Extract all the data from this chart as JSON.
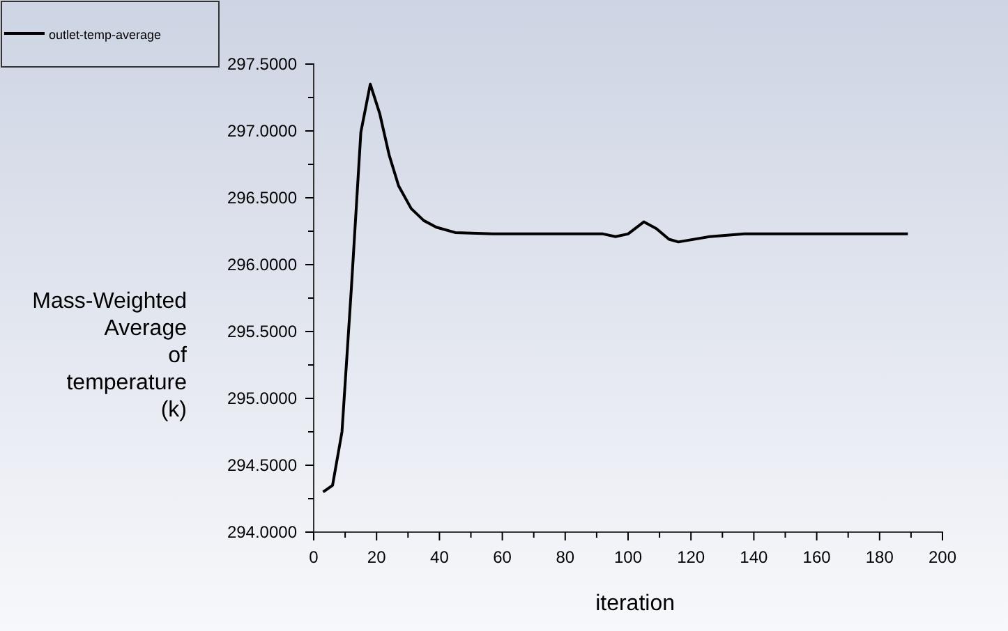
{
  "chart_data": {
    "type": "line",
    "xlabel": "iteration",
    "ylabel": "Mass-Weighted Average of temperature (k)",
    "legend": "top left",
    "xlim": [
      0,
      200
    ],
    "ylim": [
      294,
      297.5
    ],
    "xticks": [
      0,
      {
        "value": 10,
        "label": null
      },
      20,
      {
        "value": 30,
        "label": null
      },
      40,
      {
        "value": 50,
        "label": null
      },
      60,
      {
        "value": 70,
        "label": null
      },
      80,
      {
        "value": 90,
        "label": null
      },
      100,
      {
        "value": 110,
        "label": null
      },
      120,
      {
        "value": 130,
        "label": null
      },
      140,
      {
        "value": 150,
        "label": null
      },
      160,
      {
        "value": 170,
        "label": null
      },
      180,
      {
        "value": 190,
        "label": null
      },
      200
    ],
    "yticks": [
      {
        "value": 294,
        "label": "294.0000"
      },
      {
        "value": 294.25,
        "label": null
      },
      {
        "value": 294.5,
        "label": "294.5000"
      },
      {
        "value": 294.75,
        "label": null
      },
      {
        "value": 295,
        "label": "295.0000"
      },
      {
        "value": 295.25,
        "label": null
      },
      {
        "value": 295.5,
        "label": "295.5000"
      },
      {
        "value": 295.75,
        "label": null
      },
      {
        "value": 296,
        "label": "296.0000"
      },
      {
        "value": 296.25,
        "label": null
      },
      {
        "value": 296.5,
        "label": "296.5000"
      },
      {
        "value": 296.75,
        "label": null
      },
      {
        "value": 297,
        "label": "297.0000"
      },
      {
        "value": 297.25,
        "label": null
      },
      {
        "value": 297.5,
        "label": "297.5000"
      }
    ],
    "series": [
      {
        "name": "outlet-temp-average",
        "color": "#000000",
        "x": [
          3,
          6,
          9,
          12,
          15,
          18,
          21,
          24,
          27,
          31,
          35,
          39,
          45,
          57,
          70,
          80,
          92,
          96,
          100,
          105,
          109,
          113,
          116,
          126,
          137,
          150,
          170,
          189
        ],
        "values": [
          294.3,
          294.35,
          294.75,
          295.83,
          296.99,
          297.35,
          297.13,
          296.82,
          296.59,
          296.42,
          296.33,
          296.28,
          296.24,
          296.23,
          296.23,
          296.23,
          296.23,
          296.21,
          296.23,
          296.32,
          296.27,
          296.19,
          296.17,
          296.21,
          296.23,
          296.23,
          296.23,
          296.23
        ]
      }
    ]
  }
}
